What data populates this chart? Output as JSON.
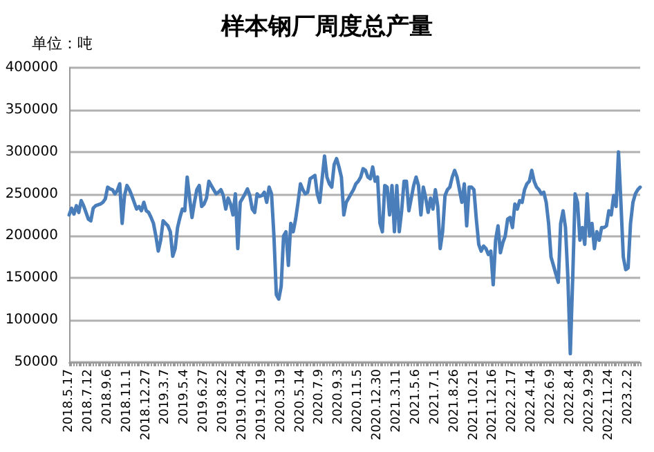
{
  "chart_data": {
    "type": "line",
    "title": "样本钢厂周度总产量",
    "ylabel": "单位：吨",
    "categories": [
      "2018.5.17",
      null,
      null,
      null,
      null,
      null,
      null,
      null,
      "2018.7.12",
      null,
      null,
      null,
      null,
      null,
      null,
      null,
      "2018.9.6",
      null,
      null,
      null,
      null,
      null,
      null,
      null,
      "2018.11.1",
      null,
      null,
      null,
      null,
      null,
      null,
      null,
      "2018.12.27",
      null,
      null,
      null,
      null,
      null,
      null,
      null,
      "2019.3.7",
      null,
      null,
      null,
      null,
      null,
      null,
      null,
      "2019.5.4",
      null,
      null,
      null,
      null,
      null,
      null,
      null,
      "2019.6.27",
      null,
      null,
      null,
      null,
      null,
      null,
      null,
      "2019.8.22",
      null,
      null,
      null,
      null,
      null,
      null,
      null,
      "2019.10.24",
      null,
      null,
      null,
      null,
      null,
      null,
      null,
      "2019.12.19",
      null,
      null,
      null,
      null,
      null,
      null,
      null,
      "2020.3.19",
      null,
      null,
      null,
      null,
      null,
      null,
      null,
      "2020.5.14",
      null,
      null,
      null,
      null,
      null,
      null,
      null,
      "2020.7.9",
      null,
      null,
      null,
      null,
      null,
      null,
      null,
      "2020.9.3",
      null,
      null,
      null,
      null,
      null,
      null,
      null,
      "2020.11.5",
      null,
      null,
      null,
      null,
      null,
      null,
      null,
      "2020.12.30",
      null,
      null,
      null,
      null,
      null,
      null,
      null,
      "2021.3.11",
      null,
      null,
      null,
      null,
      null,
      null,
      null,
      "2021.5.6",
      null,
      null,
      null,
      null,
      null,
      null,
      null,
      "2021.7.1",
      null,
      null,
      null,
      null,
      null,
      null,
      null,
      "2021.8.26",
      null,
      null,
      null,
      null,
      null,
      null,
      null,
      "2021.10.21",
      null,
      null,
      null,
      null,
      null,
      null,
      null,
      "2021.12.16",
      null,
      null,
      null,
      null,
      null,
      null,
      null,
      "2022.2.17",
      null,
      null,
      null,
      null,
      null,
      null,
      null,
      "2022.4.14",
      null,
      null,
      null,
      null,
      null,
      null,
      null,
      "2022.6.9",
      null,
      null,
      null,
      null,
      null,
      null,
      null,
      "2022.8.4",
      null,
      null,
      null,
      null,
      null,
      null,
      null,
      "2022.9.29",
      null,
      null,
      null,
      null,
      null,
      null,
      null,
      "2022.11.24",
      null,
      null,
      null,
      null,
      null,
      null,
      null,
      "2023.2.2",
      null,
      null,
      null,
      null,
      null
    ],
    "series": [
      {
        "color": "#4a7ebb",
        "values": [
          225000,
          233000,
          226000,
          236000,
          228000,
          242000,
          236000,
          228000,
          220000,
          218000,
          233000,
          236000,
          237000,
          238000,
          240000,
          244000,
          258000,
          256000,
          255000,
          250000,
          254000,
          262000,
          215000,
          248000,
          260000,
          255000,
          248000,
          240000,
          232000,
          235000,
          230000,
          240000,
          230000,
          228000,
          222000,
          215000,
          200000,
          182000,
          195000,
          218000,
          215000,
          212000,
          205000,
          176000,
          185000,
          210000,
          222000,
          232000,
          230000,
          270000,
          245000,
          222000,
          240000,
          255000,
          260000,
          235000,
          238000,
          245000,
          265000,
          260000,
          255000,
          250000,
          252000,
          255000,
          248000,
          232000,
          245000,
          238000,
          225000,
          250000,
          185000,
          240000,
          245000,
          250000,
          256000,
          248000,
          232000,
          228000,
          250000,
          247000,
          248000,
          252000,
          240000,
          258000,
          250000,
          200000,
          130000,
          125000,
          140000,
          200000,
          205000,
          165000,
          215000,
          205000,
          220000,
          240000,
          262000,
          255000,
          250000,
          252000,
          268000,
          270000,
          272000,
          250000,
          240000,
          268000,
          295000,
          270000,
          262000,
          258000,
          285000,
          292000,
          282000,
          270000,
          225000,
          240000,
          245000,
          250000,
          255000,
          262000,
          265000,
          270000,
          280000,
          278000,
          270000,
          268000,
          282000,
          265000,
          270000,
          215000,
          205000,
          260000,
          258000,
          225000,
          260000,
          205000,
          260000,
          205000,
          230000,
          265000,
          265000,
          230000,
          245000,
          260000,
          270000,
          260000,
          225000,
          258000,
          245000,
          228000,
          245000,
          232000,
          255000,
          235000,
          185000,
          205000,
          248000,
          255000,
          258000,
          270000,
          278000,
          270000,
          255000,
          240000,
          262000,
          212000,
          258000,
          258000,
          255000,
          220000,
          190000,
          182000,
          188000,
          185000,
          178000,
          182000,
          142000,
          195000,
          212000,
          180000,
          192000,
          200000,
          220000,
          222000,
          210000,
          238000,
          232000,
          242000,
          240000,
          255000,
          262000,
          265000,
          278000,
          265000,
          258000,
          255000,
          250000,
          252000,
          240000,
          215000,
          175000,
          165000,
          155000,
          145000,
          215000,
          230000,
          210000,
          150000,
          60000,
          150000,
          250000,
          240000,
          195000,
          210000,
          190000,
          250000,
          200000,
          215000,
          185000,
          205000,
          195000,
          210000,
          210000,
          212000,
          230000,
          225000,
          248000,
          235000,
          300000,
          240000,
          175000,
          160000,
          162000,
          215000,
          240000,
          250000,
          255000,
          258000
        ]
      }
    ],
    "ylim": [
      50000,
      400000
    ],
    "yticks": [
      50000,
      100000,
      150000,
      200000,
      250000,
      300000,
      350000,
      400000
    ],
    "grid": "y",
    "marker": "none",
    "line_style": "solid"
  }
}
